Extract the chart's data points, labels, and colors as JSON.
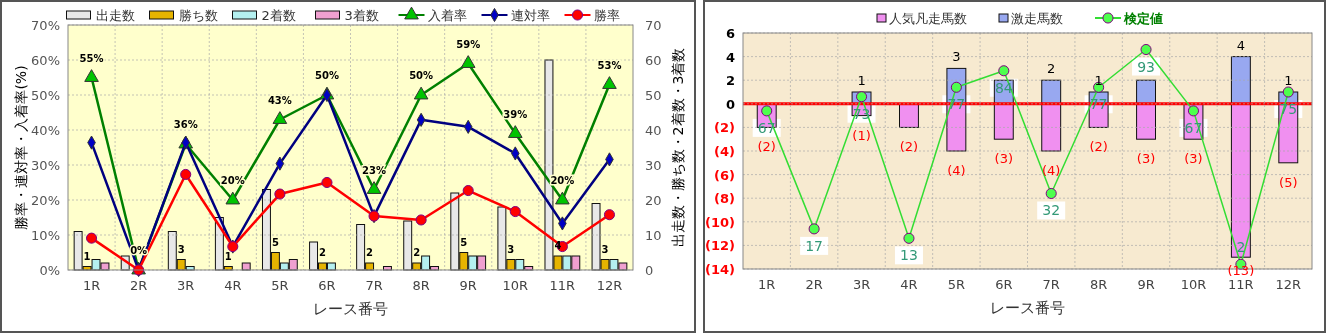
{
  "chart_data": [
    {
      "type": "bar",
      "categories": [
        "1R",
        "2R",
        "3R",
        "4R",
        "5R",
        "6R",
        "7R",
        "8R",
        "9R",
        "10R",
        "11R",
        "12R"
      ],
      "xlabel": "レース番号",
      "ylabel": "勝率・連対率・入着率(%)",
      "y2label": "出走数・勝ち数・2着数・3着数",
      "ylim": [
        0,
        70
      ],
      "yticks": [
        {
          "value": 0,
          "label": "0%"
        },
        {
          "value": 10,
          "label": "10%"
        },
        {
          "value": 20,
          "label": "20%"
        },
        {
          "value": 30,
          "label": "30%"
        },
        {
          "value": 40,
          "label": "40%"
        },
        {
          "value": 50,
          "label": "50%"
        },
        {
          "value": 60,
          "label": "60%"
        },
        {
          "value": 70,
          "label": "70%"
        }
      ],
      "y2lim": [
        0,
        70
      ],
      "y2ticks": [
        0,
        10,
        20,
        30,
        40,
        50,
        60,
        70
      ],
      "grid": true,
      "legend": "top",
      "series": [
        {
          "name": "出走数",
          "axis": "y2",
          "color": "#e8e8e8",
          "values": [
            11,
            4,
            11,
            15,
            23,
            8,
            13,
            14,
            22,
            18,
            60,
            19
          ]
        },
        {
          "name": "勝ち数",
          "axis": "y2",
          "color": "#e6b400",
          "values": [
            1,
            0,
            3,
            1,
            5,
            2,
            2,
            2,
            5,
            3,
            4,
            3
          ],
          "value_labels": [
            "1",
            null,
            "3",
            "1",
            "5",
            "2",
            "2",
            "2",
            "5",
            "3",
            "4",
            "3"
          ]
        },
        {
          "name": "2着数",
          "axis": "y2",
          "color": "#b4f0f0",
          "values": [
            3,
            0,
            1,
            0,
            2,
            2,
            0,
            4,
            4,
            3,
            4,
            3
          ]
        },
        {
          "name": "3着数",
          "axis": "y2",
          "color": "#f0a0d0",
          "values": [
            2,
            0,
            0,
            2,
            3,
            0,
            1,
            1,
            4,
            1,
            4,
            2
          ]
        },
        {
          "name": "入着率",
          "type": "line",
          "color": "#008000",
          "marker": "triangle",
          "values": [
            55,
            0,
            36,
            20,
            43,
            50,
            23,
            50,
            59,
            39,
            20,
            53
          ],
          "value_labels": [
            "55%",
            "0%",
            "36%",
            "20%",
            "43%",
            "50%",
            "23%",
            "50%",
            "59%",
            "39%",
            "20%",
            "53%"
          ]
        },
        {
          "name": "連対率",
          "type": "line",
          "color": "#000080",
          "marker": "diamond",
          "values": [
            36.4,
            0,
            36.4,
            6.7,
            30.4,
            50,
            15.4,
            42.9,
            40.9,
            33.3,
            13.3,
            31.6
          ]
        },
        {
          "name": "勝率",
          "type": "line",
          "color": "#ff0000",
          "marker": "circle",
          "values": [
            9.1,
            0,
            27.3,
            6.7,
            21.7,
            25,
            15.4,
            14.3,
            22.7,
            16.7,
            6.7,
            15.8
          ]
        }
      ]
    },
    {
      "type": "bar",
      "stacked": true,
      "categories": [
        "1R",
        "2R",
        "3R",
        "4R",
        "5R",
        "6R",
        "7R",
        "8R",
        "9R",
        "10R",
        "11R",
        "12R"
      ],
      "xlabel": "レース番号",
      "ylim": [
        -14,
        6
      ],
      "yticks": [
        {
          "value": -14,
          "label": "(14)"
        },
        {
          "value": -12,
          "label": "(12)"
        },
        {
          "value": -10,
          "label": "(10)"
        },
        {
          "value": -8,
          "label": "(8)"
        },
        {
          "value": -6,
          "label": "(6)"
        },
        {
          "value": -4,
          "label": "(4)"
        },
        {
          "value": -2,
          "label": "(2)"
        },
        0,
        2,
        4,
        6
      ],
      "y2lim": [
        0,
        100
      ],
      "grid": true,
      "legend": "top",
      "ref_lines": [
        {
          "axis": "y",
          "value": 0,
          "color": "#ff0000"
        }
      ],
      "series": [
        {
          "name": "人気凡走馬数",
          "color": "#f090f0",
          "values": [
            -2,
            null,
            -1,
            -2,
            -4,
            -3,
            -4,
            -2,
            -3,
            -3,
            -13,
            -5
          ],
          "value_labels": [
            "(2)",
            null,
            "(1)",
            "(2)",
            "(4)",
            "(3)",
            "(4)",
            "(2)",
            "(3)",
            "(3)",
            "(13)",
            "(5)"
          ]
        },
        {
          "name": "激走馬数",
          "color": "#98a8f0",
          "values": [
            null,
            null,
            1,
            null,
            3,
            2,
            2,
            1,
            2,
            null,
            4,
            1
          ],
          "value_labels": [
            null,
            null,
            "1",
            null,
            "3",
            null,
            "2",
            "1",
            null,
            null,
            "4",
            "1"
          ]
        },
        {
          "name": "検定値",
          "type": "line",
          "axis": "y2",
          "color": "#33dd33",
          "marker": "circle",
          "values": [
            67,
            17,
            73,
            13,
            77,
            84,
            32,
            77,
            93,
            67,
            2,
            75
          ],
          "data_labels": true
        }
      ]
    }
  ]
}
